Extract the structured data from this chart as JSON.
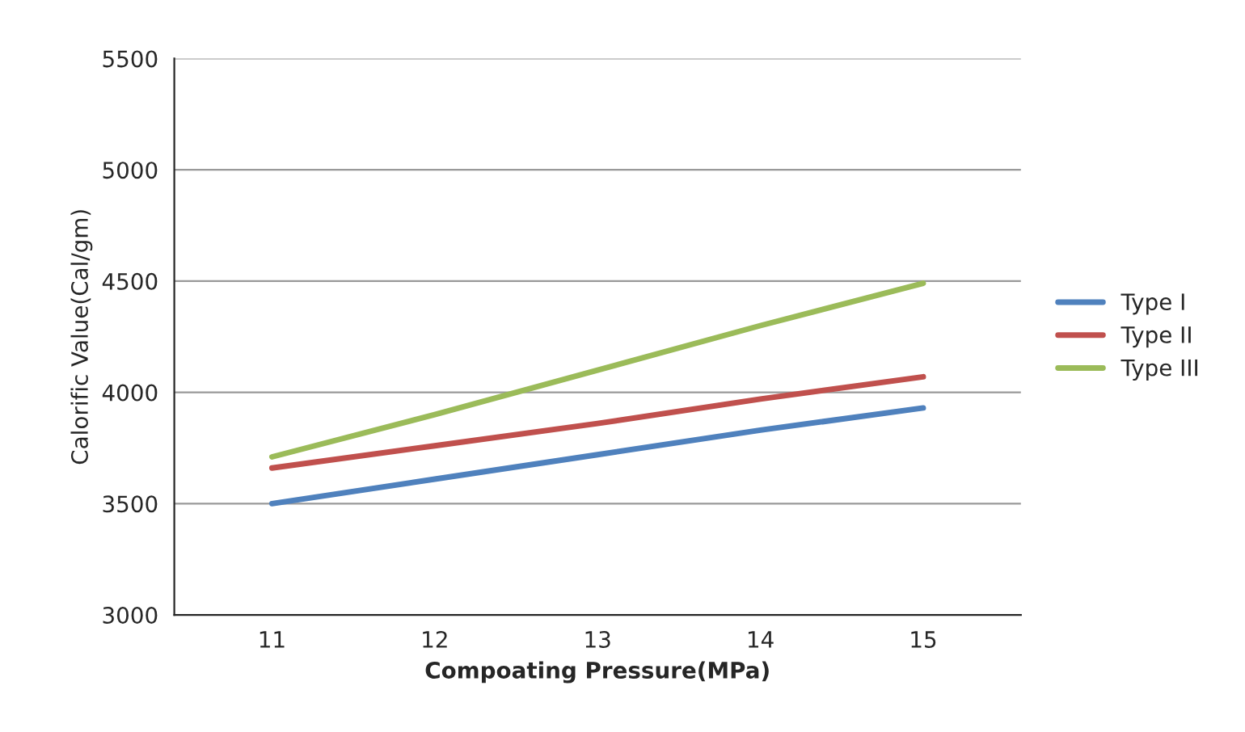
{
  "chart_data": {
    "type": "line",
    "xlabel": "Compoating Pressure(MPa)",
    "ylabel": "Calorific Value(Cal/gm)",
    "categories": [
      "11",
      "12",
      "13",
      "14",
      "15"
    ],
    "series": [
      {
        "name": "Type I",
        "color": "#4f81bd",
        "values": [
          3500,
          3610,
          3720,
          3830,
          3930
        ]
      },
      {
        "name": "Type II",
        "color": "#c0504d",
        "values": [
          3660,
          3760,
          3860,
          3970,
          4070
        ]
      },
      {
        "name": "Type III",
        "color": "#9bbb59",
        "values": [
          3710,
          3900,
          4100,
          4300,
          4490
        ]
      }
    ],
    "ylim": [
      3000,
      5500
    ],
    "yticks": [
      3000,
      3500,
      4000,
      4500,
      5000,
      5500
    ],
    "grid": "y",
    "legend": "right",
    "marker": "none",
    "line_style": "solid"
  }
}
